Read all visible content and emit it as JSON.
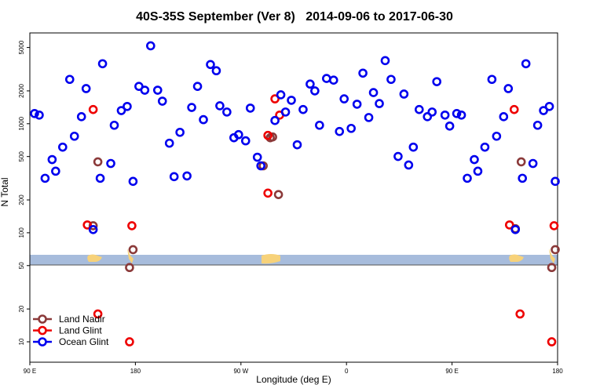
{
  "chart_data": {
    "type": "scatter",
    "title": "40S-35S September (Ver 8)   2014-09-06 to 2017-06-30",
    "xlabel": "Longitude (deg E)",
    "ylabel": "N Total",
    "xlim": [
      90,
      540
    ],
    "ylim": [
      6.5,
      6800
    ],
    "yscale": "log",
    "legend": "lower left",
    "xticks": [
      {
        "value": 90,
        "label": "90 E"
      },
      180,
      {
        "value": 270,
        "label": "90 W"
      },
      {
        "value": 360,
        "label": "0"
      },
      {
        "value": 450,
        "label": "90 E"
      },
      {
        "value": 540,
        "label": "180"
      }
    ],
    "yticks": [
      10,
      20,
      50,
      100,
      200,
      500,
      1000,
      2000,
      5000
    ],
    "series": [
      {
        "name": "Land Nadir",
        "color": "#8b3a3a",
        "x": [
          144,
          148,
          175,
          178,
          289,
          295,
          297,
          302,
          504,
          509,
          535,
          538
        ],
        "values": [
          116,
          447,
          48,
          70,
          411,
          744,
          756,
          224,
          109,
          447,
          48,
          70
        ]
      },
      {
        "name": "Land Glint",
        "color": "#ee0000",
        "x": [
          139,
          144,
          148,
          175,
          177,
          293,
          293,
          299,
          303,
          499,
          503,
          508,
          535,
          537
        ],
        "values": [
          118,
          1350,
          18,
          10,
          116,
          231,
          781,
          1690,
          1200,
          118,
          1350,
          18,
          10,
          116
        ]
      },
      {
        "name": "Ocean Glint",
        "color": "#0000ee",
        "x": [
          94,
          98,
          103,
          109,
          112,
          118,
          124,
          128,
          134,
          138,
          144,
          150,
          152,
          159,
          162,
          168,
          173,
          178,
          183,
          188,
          193,
          199,
          203,
          209,
          213,
          218,
          224,
          228,
          233,
          238,
          244,
          249,
          252,
          258,
          264,
          268,
          274,
          278,
          284,
          287,
          299,
          304,
          308,
          313,
          318,
          323,
          329,
          333,
          337,
          343,
          349,
          354,
          358,
          364,
          369,
          374,
          379,
          383,
          388,
          393,
          398,
          404,
          409,
          413,
          417,
          422,
          429,
          433,
          437,
          444,
          448,
          454,
          458,
          463,
          469,
          472,
          478,
          484,
          488,
          494,
          498,
          504,
          510,
          513,
          519,
          523,
          528,
          533,
          538
        ],
        "values": [
          1240,
          1200,
          316,
          469,
          367,
          610,
          2550,
          768,
          1160,
          2100,
          107,
          316,
          3550,
          432,
          968,
          1320,
          1440,
          296,
          2200,
          2030,
          5180,
          2030,
          1610,
          663,
          327,
          834,
          332,
          1410,
          2200,
          1090,
          3490,
          3060,
          1460,
          1280,
          744,
          794,
          697,
          1390,
          493,
          411,
          1070,
          1840,
          1280,
          1640,
          641,
          1350,
          2310,
          2000,
          968,
          2600,
          2510,
          849,
          1690,
          906,
          1510,
          2910,
          1140,
          1930,
          1530,
          3790,
          2550,
          501,
          1870,
          418,
          610,
          1350,
          1160,
          1280,
          2430,
          1200,
          952,
          1240,
          1200,
          316,
          469,
          367,
          610,
          2550,
          768,
          1160,
          2100,
          107,
          316,
          3550,
          432,
          968,
          1320,
          1440,
          296
        ]
      }
    ]
  }
}
